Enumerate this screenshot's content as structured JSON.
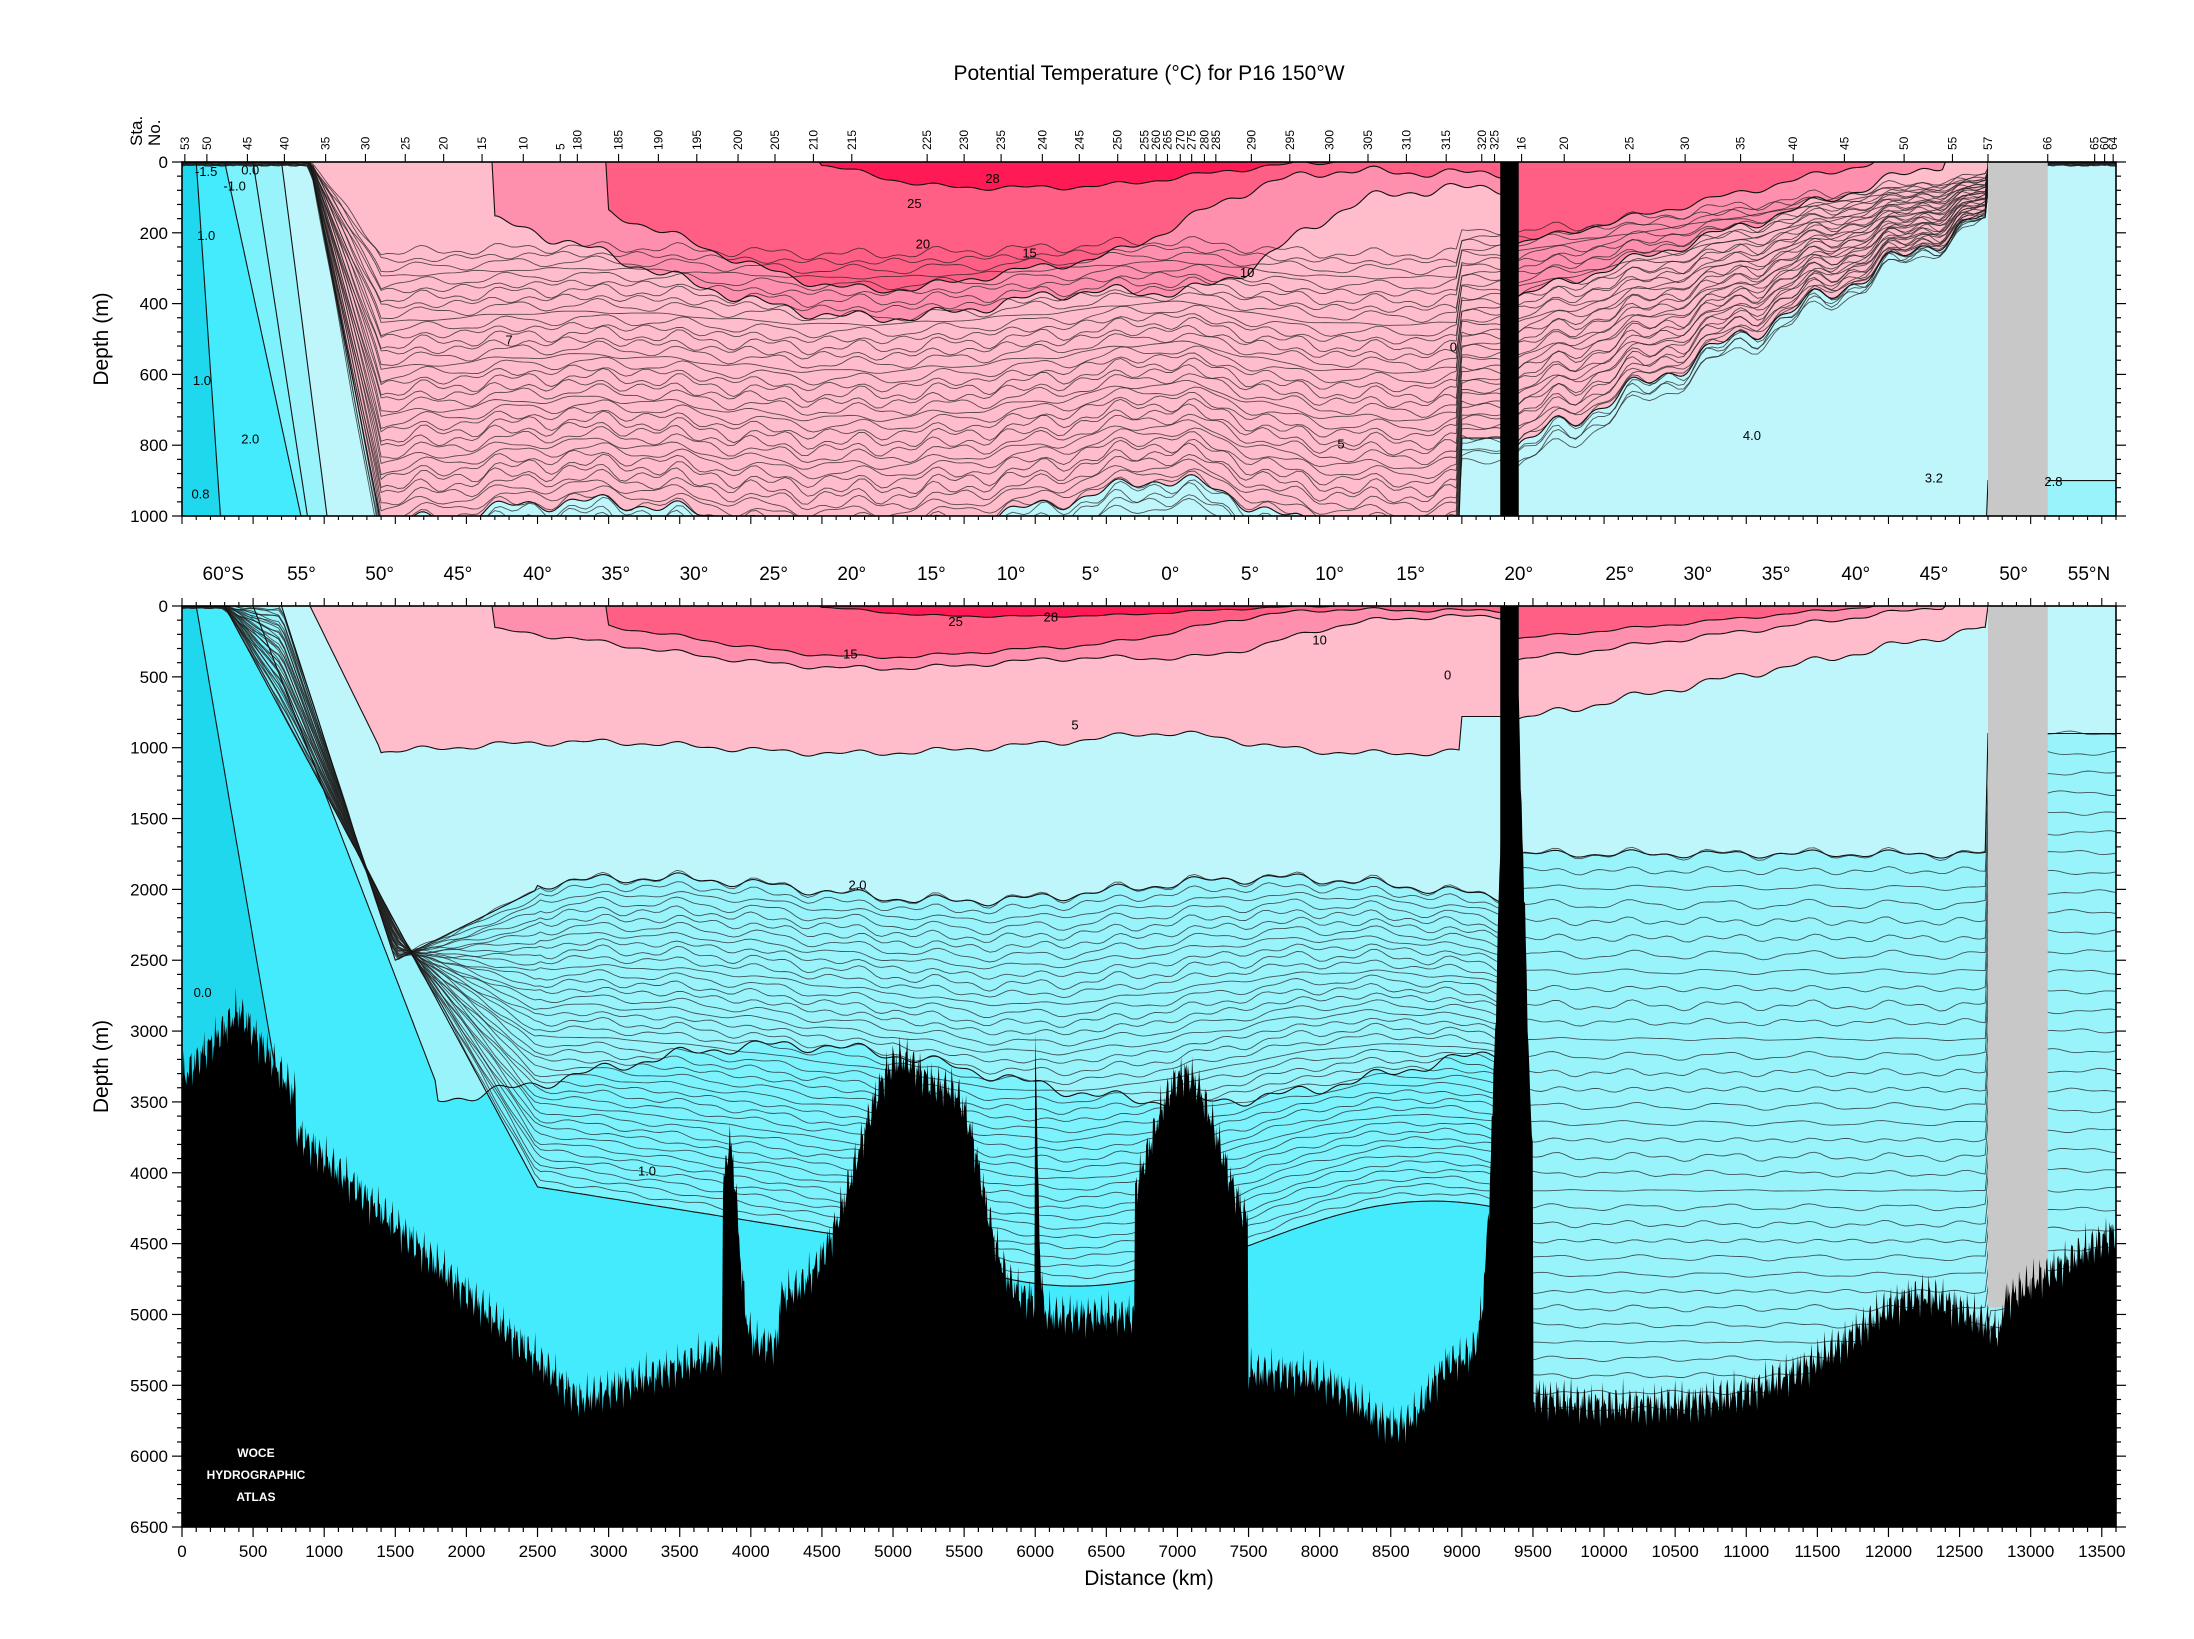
{
  "chart_data": {
    "type": "heatmap",
    "title": "Potential Temperature (°C) for P16 150°W",
    "xlabel": "Distance (km)",
    "ylabel": "Depth (m)",
    "xlim": [
      0,
      13600
    ],
    "x_ticks": [
      "0",
      "500",
      "1000",
      "1500",
      "2000",
      "2500",
      "3000",
      "3500",
      "4000",
      "4500",
      "5000",
      "5500",
      "6000",
      "6500",
      "7000",
      "7500",
      "8000",
      "8500",
      "9000",
      "9500",
      "10000",
      "10500",
      "11000",
      "11500",
      "12000",
      "12500",
      "13000",
      "13500"
    ],
    "station_axis_label": [
      "Sta.",
      "No."
    ],
    "station_ticks": [
      {
        "label": "53",
        "x": 20
      },
      {
        "label": "50",
        "x": 175
      },
      {
        "label": "45",
        "x": 460
      },
      {
        "label": "40",
        "x": 720
      },
      {
        "label": "35",
        "x": 1010
      },
      {
        "label": "30",
        "x": 1290
      },
      {
        "label": "25",
        "x": 1570
      },
      {
        "label": "20",
        "x": 1840
      },
      {
        "label": "15",
        "x": 2110
      },
      {
        "label": "10",
        "x": 2400
      },
      {
        "label": "5",
        "x": 2660
      },
      {
        "label": "180",
        "x": 2780
      },
      {
        "label": "185",
        "x": 3070
      },
      {
        "label": "190",
        "x": 3350
      },
      {
        "label": "195",
        "x": 3620
      },
      {
        "label": "200",
        "x": 3910
      },
      {
        "label": "205",
        "x": 4170
      },
      {
        "label": "210",
        "x": 4440
      },
      {
        "label": "215",
        "x": 4710
      },
      {
        "label": "225",
        "x": 5240
      },
      {
        "label": "230",
        "x": 5500
      },
      {
        "label": "235",
        "x": 5760
      },
      {
        "label": "240",
        "x": 6050
      },
      {
        "label": "245",
        "x": 6310
      },
      {
        "label": "250",
        "x": 6580
      },
      {
        "label": "255",
        "x": 6770
      },
      {
        "label": "260",
        "x": 6850
      },
      {
        "label": "265",
        "x": 6930
      },
      {
        "label": "270",
        "x": 7020
      },
      {
        "label": "275",
        "x": 7100
      },
      {
        "label": "280",
        "x": 7190
      },
      {
        "label": "285",
        "x": 7270
      },
      {
        "label": "290",
        "x": 7520
      },
      {
        "label": "295",
        "x": 7790
      },
      {
        "label": "300",
        "x": 8070
      },
      {
        "label": "305",
        "x": 8340
      },
      {
        "label": "310",
        "x": 8610
      },
      {
        "label": "315",
        "x": 8890
      },
      {
        "label": "320",
        "x": 9140
      },
      {
        "label": "325",
        "x": 9230
      },
      {
        "label": "16",
        "x": 9420
      },
      {
        "label": "20",
        "x": 9720
      },
      {
        "label": "25",
        "x": 10180
      },
      {
        "label": "30",
        "x": 10570
      },
      {
        "label": "35",
        "x": 10960
      },
      {
        "label": "40",
        "x": 11330
      },
      {
        "label": "45",
        "x": 11690
      },
      {
        "label": "50",
        "x": 12110
      },
      {
        "label": "55",
        "x": 12450
      },
      {
        "label": "57",
        "x": 12700
      },
      {
        "label": "66",
        "x": 13120
      },
      {
        "label": "65",
        "x": 13450
      },
      {
        "label": "60",
        "x": 13520
      },
      {
        "label": "64",
        "x": 13580
      }
    ],
    "latitude_ticks": [
      {
        "label": "60°S",
        "x": 290
      },
      {
        "label": "55°",
        "x": 840
      },
      {
        "label": "50°",
        "x": 1390
      },
      {
        "label": "45°",
        "x": 1940
      },
      {
        "label": "40°",
        "x": 2500
      },
      {
        "label": "35°",
        "x": 3050
      },
      {
        "label": "30°",
        "x": 3600
      },
      {
        "label": "25°",
        "x": 4160
      },
      {
        "label": "20°",
        "x": 4710
      },
      {
        "label": "15°",
        "x": 5270
      },
      {
        "label": "10°",
        "x": 5830
      },
      {
        "label": "5°",
        "x": 6390
      },
      {
        "label": "0°",
        "x": 6950
      },
      {
        "label": "5°",
        "x": 7510
      },
      {
        "label": "10°",
        "x": 8070
      },
      {
        "label": "15°",
        "x": 8640
      },
      {
        "label": "20°",
        "x": 9400
      },
      {
        "label": "25°",
        "x": 10110
      },
      {
        "label": "30°",
        "x": 10660
      },
      {
        "label": "35°",
        "x": 11210
      },
      {
        "label": "40°",
        "x": 11770
      },
      {
        "label": "45°",
        "x": 12320
      },
      {
        "label": "50°",
        "x": 12880
      },
      {
        "label": "55°N",
        "x": 13410
      }
    ],
    "panels": [
      {
        "name": "upper",
        "ylim": [
          0,
          1000
        ],
        "y_ticks": [
          "0",
          "200",
          "400",
          "600",
          "800",
          "1000"
        ],
        "contour_labels": [
          {
            "text": "-1.5",
            "x": 170,
            "y": 40
          },
          {
            "text": "0.0",
            "x": 480,
            "y": 35
          },
          {
            "text": "-1.0",
            "x": 370,
            "y": 80
          },
          {
            "text": "1.0",
            "x": 170,
            "y": 220
          },
          {
            "text": "1.0",
            "x": 140,
            "y": 630
          },
          {
            "text": "2.0",
            "x": 480,
            "y": 795
          },
          {
            "text": "0.8",
            "x": 130,
            "y": 950
          },
          {
            "text": "28",
            "x": 5700,
            "y": 60
          },
          {
            "text": "25",
            "x": 5150,
            "y": 130
          },
          {
            "text": "20",
            "x": 5210,
            "y": 245
          },
          {
            "text": "15",
            "x": 5960,
            "y": 270
          },
          {
            "text": "10",
            "x": 7490,
            "y": 325
          },
          {
            "text": "7",
            "x": 2300,
            "y": 515
          },
          {
            "text": "0",
            "x": 8940,
            "y": 535
          },
          {
            "text": "5",
            "x": 8150,
            "y": 810
          },
          {
            "text": "4.0",
            "x": 11040,
            "y": 785
          },
          {
            "text": "3.2",
            "x": 12320,
            "y": 905
          },
          {
            "text": "2.8",
            "x": 13160,
            "y": 915
          }
        ]
      },
      {
        "name": "lower",
        "ylim": [
          0,
          6500
        ],
        "y_ticks": [
          "0",
          "500",
          "1000",
          "1500",
          "2000",
          "2500",
          "3000",
          "3500",
          "4000",
          "4500",
          "5000",
          "5500",
          "6000",
          "6500"
        ],
        "contour_labels": [
          {
            "text": "25",
            "x": 5440,
            "y": 140
          },
          {
            "text": "28",
            "x": 6110,
            "y": 110
          },
          {
            "text": "15",
            "x": 4700,
            "y": 370
          },
          {
            "text": "10",
            "x": 8000,
            "y": 270
          },
          {
            "text": "0",
            "x": 8900,
            "y": 520
          },
          {
            "text": "5",
            "x": 6280,
            "y": 870
          },
          {
            "text": "2.0",
            "x": 4750,
            "y": 2000
          },
          {
            "text": "1.0",
            "x": 3270,
            "y": 4020
          },
          {
            "text": "0.0",
            "x": 145,
            "y": 2760
          }
        ]
      }
    ],
    "bands": [
      {
        "range": "≥ 25",
        "color": "#ff1a55"
      },
      {
        "range": "15 – 25",
        "color": "#ff5e85"
      },
      {
        "range": "10 – 15",
        "color": "#ff90ad"
      },
      {
        "range": "5 – 10",
        "color": "#ffbccb"
      },
      {
        "range": "2 – 5",
        "color": "#bff6fb"
      },
      {
        "range": "1.5 – 2",
        "color": "#99f3fb"
      },
      {
        "range": "1 – 1.5",
        "color": "#7cf2fd"
      },
      {
        "range": "0 – 1",
        "color": "#44ebfd"
      },
      {
        "range": "< 0",
        "color": "#1fd8ee"
      }
    ],
    "no_data_color": "#c8c8c8",
    "bottom_color": "#000000",
    "grid": false
  },
  "logo": [
    "WOCE",
    "HYDROGRAPHIC",
    "ATLAS"
  ]
}
